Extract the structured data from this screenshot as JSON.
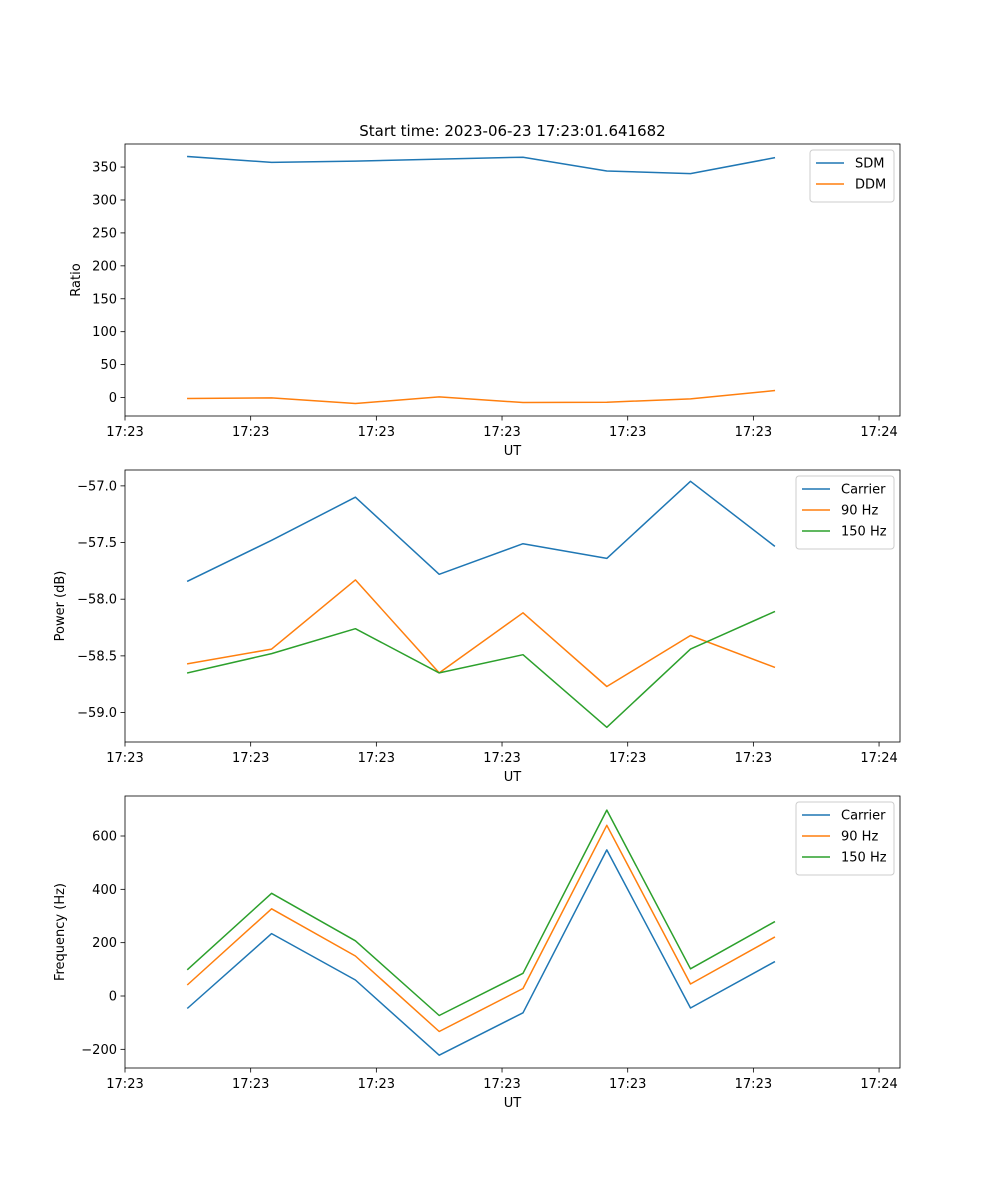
{
  "figure": {
    "title": "Start time: 2023-06-23 17:23:01.641682"
  },
  "chart_data": [
    {
      "type": "line",
      "xlabel": "UT",
      "ylabel": "Ratio",
      "x_tick_labels": [
        "17:23",
        "17:23",
        "17:23",
        "17:23",
        "17:23",
        "17:23",
        "17:24"
      ],
      "ylim": [
        -28,
        385
      ],
      "y_ticks": [
        0,
        50,
        100,
        150,
        200,
        250,
        300,
        350
      ],
      "legend_position": "top-right",
      "series": [
        {
          "name": "SDM",
          "color": "#1f77b4",
          "values": [
            366,
            357,
            359,
            362,
            365,
            344,
            340,
            364
          ]
        },
        {
          "name": "DDM",
          "color": "#ff7f0e",
          "values": [
            -1.5,
            -0.5,
            -9,
            1,
            -7.5,
            -7,
            -2,
            10.5
          ]
        }
      ]
    },
    {
      "type": "line",
      "xlabel": "UT",
      "ylabel": "Power (dB)",
      "x_tick_labels": [
        "17:23",
        "17:23",
        "17:23",
        "17:23",
        "17:23",
        "17:23",
        "17:24"
      ],
      "ylim": [
        -59.26,
        -56.86
      ],
      "y_ticks": [
        -59.0,
        -58.5,
        -58.0,
        -57.5,
        -57.0
      ],
      "y_tick_labels": [
        "−59.0",
        "−58.5",
        "−58.0",
        "−57.5",
        "−57.0"
      ],
      "legend_position": "top-right",
      "series": [
        {
          "name": "Carrier",
          "color": "#1f77b4",
          "values": [
            -57.84,
            -57.48,
            -57.1,
            -57.78,
            -57.51,
            -57.64,
            -56.96,
            -57.53
          ]
        },
        {
          "name": "90 Hz",
          "color": "#ff7f0e",
          "values": [
            -58.57,
            -58.44,
            -57.83,
            -58.65,
            -58.12,
            -58.77,
            -58.32,
            -58.6
          ]
        },
        {
          "name": "150 Hz",
          "color": "#2ca02c",
          "values": [
            -58.65,
            -58.48,
            -58.26,
            -58.65,
            -58.49,
            -59.13,
            -58.44,
            -58.11
          ]
        }
      ]
    },
    {
      "type": "line",
      "xlabel": "UT",
      "ylabel": "Frequency (Hz)",
      "x_tick_labels": [
        "17:23",
        "17:23",
        "17:23",
        "17:23",
        "17:23",
        "17:23",
        "17:24"
      ],
      "ylim": [
        -270,
        750
      ],
      "y_ticks": [
        -200,
        0,
        200,
        400,
        600
      ],
      "y_tick_labels": [
        "−200",
        "0",
        "200",
        "400",
        "600"
      ],
      "legend_position": "top-right",
      "series": [
        {
          "name": "Carrier",
          "color": "#1f77b4",
          "values": [
            -45,
            234,
            60,
            -222,
            -63,
            548,
            -45,
            128
          ]
        },
        {
          "name": "90 Hz",
          "color": "#ff7f0e",
          "values": [
            43,
            327,
            150,
            -133,
            28,
            640,
            45,
            220
          ]
        },
        {
          "name": "150 Hz",
          "color": "#2ca02c",
          "values": [
            100,
            385,
            207,
            -73,
            85,
            697,
            102,
            278
          ]
        }
      ]
    }
  ]
}
